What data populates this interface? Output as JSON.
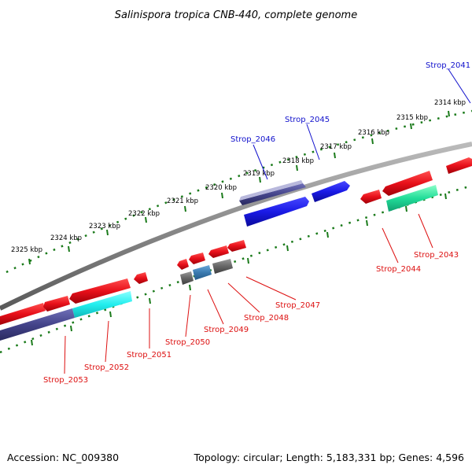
{
  "title": "Salinispora tropica CNB-440, complete genome",
  "footer": {
    "accession": "Accession: NC_009380",
    "summary": "Topology: circular; Length: 5,183,331 bp; Genes: 4,596"
  },
  "ticks": [
    "2325 kbp",
    "2324 kbp",
    "2323 kbp",
    "2322 kbp",
    "2321 kbp",
    "2320 kbp",
    "2319 kbp",
    "2318 kbp",
    "2317 kbp",
    "2316 kbp",
    "2315 kbp",
    "2314 kbp"
  ],
  "genes_forward": [
    {
      "label": "Strop_2046",
      "color": "#1a1aee"
    },
    {
      "label": "Strop_2045",
      "color": "#1a1aee"
    },
    {
      "label": "Strop_2041",
      "color": "#1a1aee"
    }
  ],
  "genes_reverse": [
    {
      "label": "Strop_2053",
      "color": "#e61010"
    },
    {
      "label": "Strop_2052",
      "color": "#e61010"
    },
    {
      "label": "Strop_2051",
      "color": "#e61010"
    },
    {
      "label": "Strop_2050",
      "color": "#e61010"
    },
    {
      "label": "Strop_2049",
      "color": "#e61010"
    },
    {
      "label": "Strop_2048",
      "color": "#e61010"
    },
    {
      "label": "Strop_2047",
      "color": "#e61010"
    },
    {
      "label": "Strop_2044",
      "color": "#e61010"
    },
    {
      "label": "Strop_2043",
      "color": "#e61010"
    }
  ],
  "colors": {
    "backbone": "#888888",
    "tick_dots": "#1a7a1a",
    "forward_label": "#1010cc",
    "reverse_label": "#dd1010",
    "red_feature": "#e8101a",
    "blue_feature": "#1a1ae6",
    "cyan_feature": "#22eeee",
    "green_feature": "#22dd99",
    "dark_blue_feature": "#44448a",
    "gray_feature": "#666666",
    "steel_feature": "#3a7ab0"
  }
}
